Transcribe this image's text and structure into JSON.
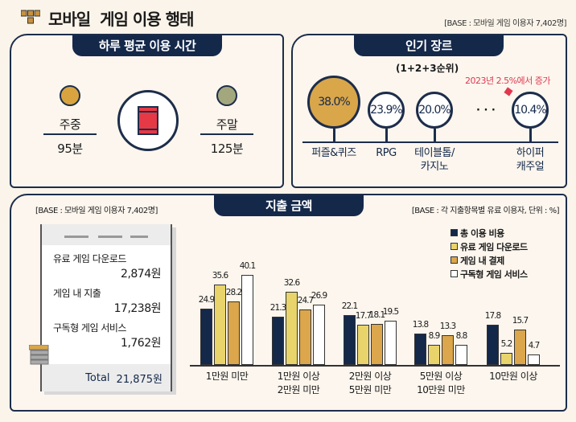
{
  "header": {
    "title": "모바일  게임 이용 행태",
    "base": "[BASE : 모바일 게임 이용자 7,402명]",
    "logo_icon": "game-controller-keys-icon"
  },
  "usage_time": {
    "tab": "하루 평균 이용 시간",
    "weekday": {
      "label": "주중",
      "value": "95분",
      "icon": "clock-icon",
      "color": "#d9a440"
    },
    "weekend": {
      "label": "주말",
      "value": "125분",
      "icon": "clock-icon",
      "color": "#a3a77e"
    },
    "center_icon": "smartphone-icon"
  },
  "genre": {
    "tab": "인기 장르",
    "subtitle": "(1+2+3순위)",
    "note": "2023년 2.5%에서 증가",
    "ellipsis": "· · ·",
    "items": [
      {
        "label": "퍼즐&퀴즈",
        "value": "38.0%"
      },
      {
        "label": "RPG",
        "value": "23.9%"
      },
      {
        "label": "테이블톱/\n카지노",
        "value": "20.0%"
      },
      {
        "label": "하이퍼\n캐주얼",
        "value": "10.4%"
      }
    ]
  },
  "spending": {
    "tab": "지출 금액",
    "base_left": "[BASE : 모바일 게임 이용자 7,402명]",
    "base_right": "[BASE : 각 지출항목별 유료 이용자, 단위 : %]",
    "receipt": {
      "items": [
        {
          "label": "유료 게임 다운로드",
          "value": "2,874원"
        },
        {
          "label": "게임 내 지출",
          "value": "17,238원"
        },
        {
          "label": "구독형 게임 서비스",
          "value": "1,762원"
        }
      ],
      "total_label": "Total",
      "total_value": "21,875원"
    }
  },
  "chart_data": {
    "type": "bar",
    "categories": [
      "1만원 미만",
      "1만원 이상\n2만원 미만",
      "2만원 이상\n5만원 미만",
      "5만원 이상\n10만원 미만",
      "10만원 이상"
    ],
    "series": [
      {
        "name": "총 이용 비용",
        "color": "#14284a",
        "values": [
          24.9,
          21.3,
          22.1,
          13.8,
          17.8
        ]
      },
      {
        "name": "유료 게임 다운로드",
        "color": "#e9d46c",
        "values": [
          35.6,
          32.6,
          17.7,
          8.9,
          5.2
        ]
      },
      {
        "name": "게임 내 결제",
        "color": "#dba64c",
        "values": [
          28.2,
          24.7,
          18.1,
          13.3,
          15.7
        ]
      },
      {
        "name": "구독형 게임 서비스",
        "color": "#ffffff",
        "values": [
          40.1,
          26.9,
          19.5,
          8.8,
          4.7
        ]
      }
    ],
    "ylim": [
      0,
      45
    ],
    "grid": false,
    "legend": "top-right",
    "unit": "%"
  }
}
